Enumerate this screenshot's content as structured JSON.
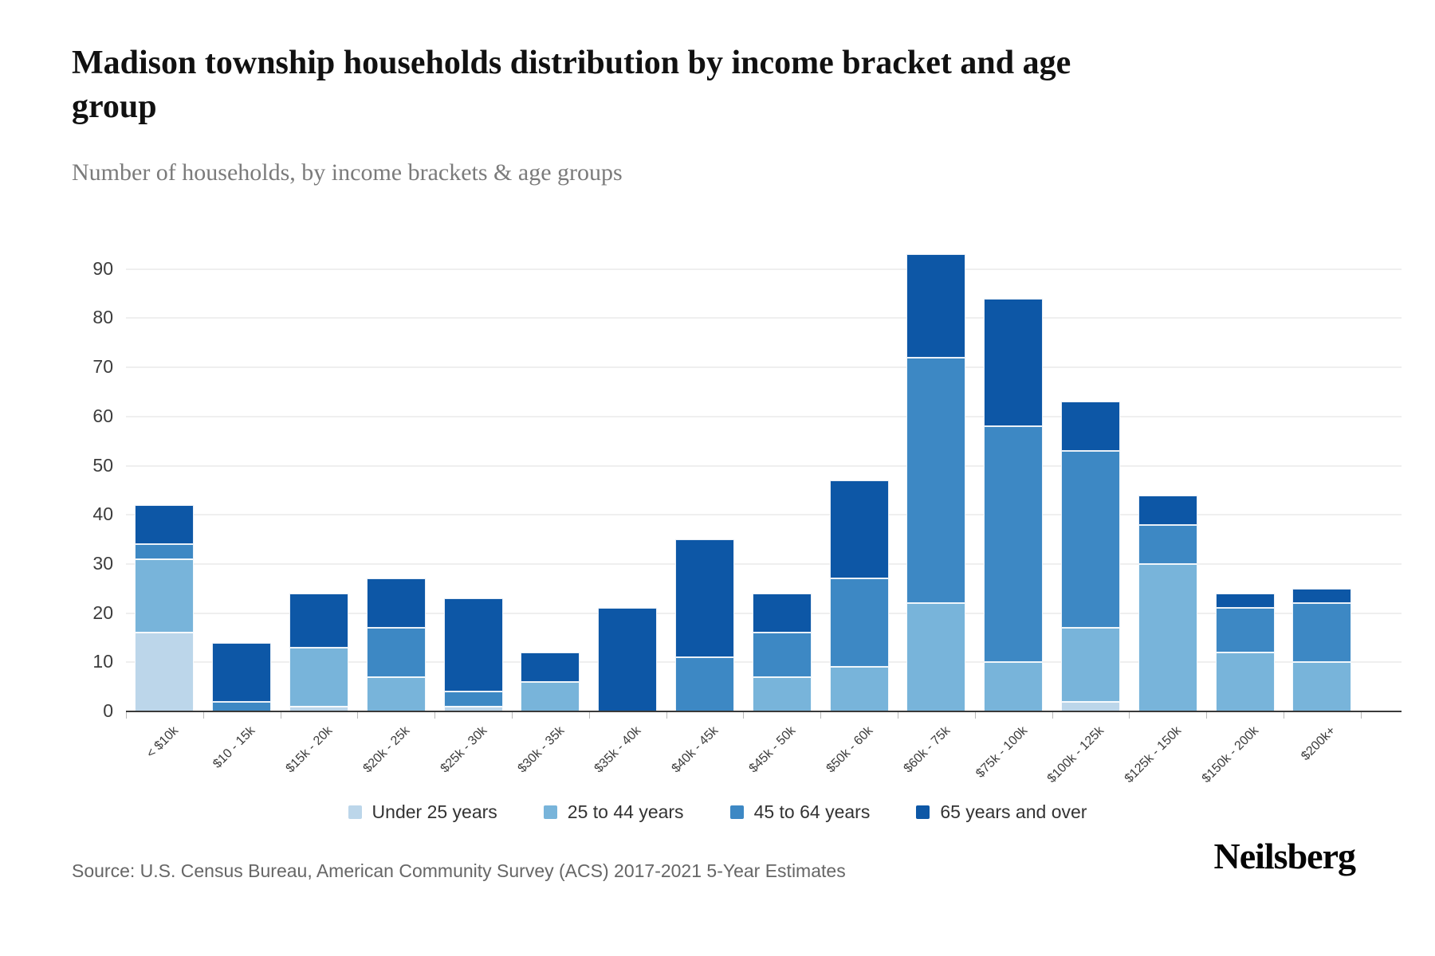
{
  "header": {
    "title_lines": [
      "Madison township households distribution by income bracket and age",
      "group"
    ],
    "title_full": "Madison township households distribution by income bracket and age group",
    "subtitle": "Number of households, by income brackets & age groups"
  },
  "chart_data": {
    "type": "bar",
    "stacked": true,
    "categories": [
      "< $10k",
      "$10 - 15k",
      "$15k - 20k",
      "$20k - 25k",
      "$25k - 30k",
      "$30k - 35k",
      "$35k - 40k",
      "$40k - 45k",
      "$45k - 50k",
      "$50k - 60k",
      "$60k - 75k",
      "$75k - 100k",
      "$100k - 125k",
      "$125k - 150k",
      "$150k - 200k",
      "$200k+"
    ],
    "series": [
      {
        "name": "Under 25 years",
        "color": "#bcd6ea",
        "values": [
          16,
          0,
          1,
          0,
          1,
          0,
          0,
          0,
          0,
          0,
          0,
          0,
          2,
          0,
          0,
          0
        ]
      },
      {
        "name": "25 to 44 years",
        "color": "#78b4da",
        "values": [
          15,
          0,
          12,
          7,
          0,
          6,
          0,
          0,
          7,
          9,
          22,
          10,
          15,
          30,
          12,
          10
        ]
      },
      {
        "name": "45 to 64 years",
        "color": "#3d88c4",
        "values": [
          3,
          2,
          0,
          10,
          3,
          0,
          0,
          11,
          9,
          18,
          50,
          48,
          36,
          8,
          9,
          12
        ]
      },
      {
        "name": "65 years and over",
        "color": "#0d57a6",
        "values": [
          8,
          12,
          11,
          10,
          19,
          6,
          21,
          24,
          8,
          20,
          21,
          26,
          10,
          6,
          3,
          3
        ]
      }
    ],
    "totals": [
      42,
      14,
      24,
      27,
      23,
      12,
      21,
      35,
      24,
      47,
      93,
      84,
      63,
      44,
      24,
      25
    ],
    "ylabel": "",
    "xlabel": "",
    "ylim": [
      0,
      90
    ],
    "ytick_step": 10,
    "yticks": [
      "0",
      "10",
      "20",
      "30",
      "40",
      "50",
      "60",
      "70",
      "80",
      "90"
    ],
    "grid": true,
    "legend_position": "bottom"
  },
  "footer": {
    "source": "Source: U.S. Census Bureau, American Community Survey (ACS) 2017-2021 5-Year Estimates",
    "brand": "Neilsberg"
  }
}
